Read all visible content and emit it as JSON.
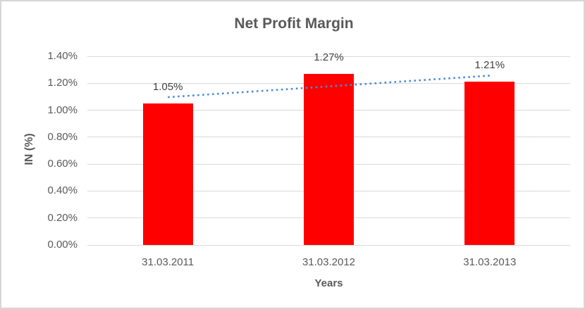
{
  "chart_data": {
    "type": "bar",
    "title": "Net Profit Margin",
    "xlabel": "Years",
    "ylabel": "IN (%)",
    "categories": [
      "31.03.2011",
      "31.03.2012",
      "31.03.2013"
    ],
    "values": [
      1.05,
      1.27,
      1.21
    ],
    "data_labels": [
      "1.05%",
      "1.27%",
      "1.21%"
    ],
    "unit": "%",
    "ylim": [
      0,
      1.4
    ],
    "y_tick_step": 0.2,
    "y_tick_labels": [
      "0.00%",
      "0.20%",
      "0.40%",
      "0.60%",
      "0.80%",
      "1.00%",
      "1.20%",
      "1.40%"
    ],
    "grid": true,
    "legend": "none",
    "bar_color": "#FF0000",
    "trendline": {
      "type": "linear",
      "style": "dotted",
      "color": "#4A8BD4",
      "start_value": 1.0967,
      "end_value": 1.2567
    }
  },
  "colors": {
    "grid": "#D9D9D9",
    "frame_border": "#D6D6D6",
    "tick_text": "#595959",
    "label_text": "#404040",
    "title_text": "#595959"
  }
}
